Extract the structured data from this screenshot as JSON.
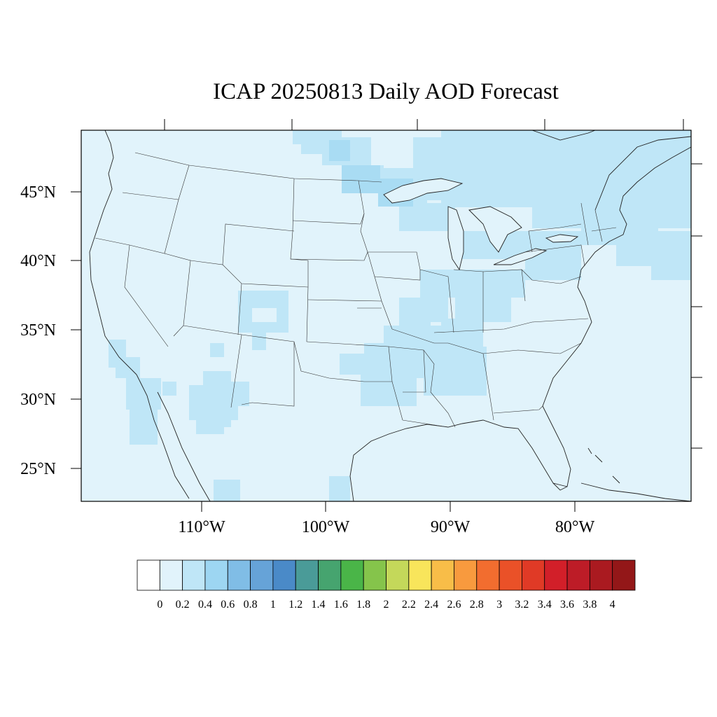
{
  "title": "ICAP 20250813 Daily AOD Forecast",
  "lat_labels": [
    "45°N",
    "40°N",
    "35°N",
    "30°N",
    "25°N"
  ],
  "lon_labels": [
    "110°W",
    "100°W",
    "90°W",
    "80°W"
  ],
  "colorbar": {
    "labels": [
      "0",
      "0.2",
      "0.4",
      "0.6",
      "0.8",
      "1",
      "1.2",
      "1.4",
      "1.6",
      "1.8",
      "2",
      "2.2",
      "2.4",
      "2.6",
      "2.8",
      "3",
      "3.2",
      "3.4",
      "3.6",
      "3.8",
      "4"
    ],
    "colors": [
      "#ffffff",
      "#e1f3fb",
      "#bfe6f7",
      "#9dd6f2",
      "#80bde6",
      "#66a3d8",
      "#4a8ac8",
      "#4a9b98",
      "#46a46f",
      "#4ab548",
      "#85c44b",
      "#c4d85a",
      "#f8e55b",
      "#f8bd48",
      "#f89a3e",
      "#f26d2f",
      "#ea5128",
      "#e03a26",
      "#d21f29",
      "#bd1c27",
      "#aa1a20",
      "#931718"
    ]
  },
  "colors": {
    "background_aod": "#e1f3fb",
    "elevated_aod": "#bfe6f7",
    "peak_aod": "#a9dcf3"
  }
}
